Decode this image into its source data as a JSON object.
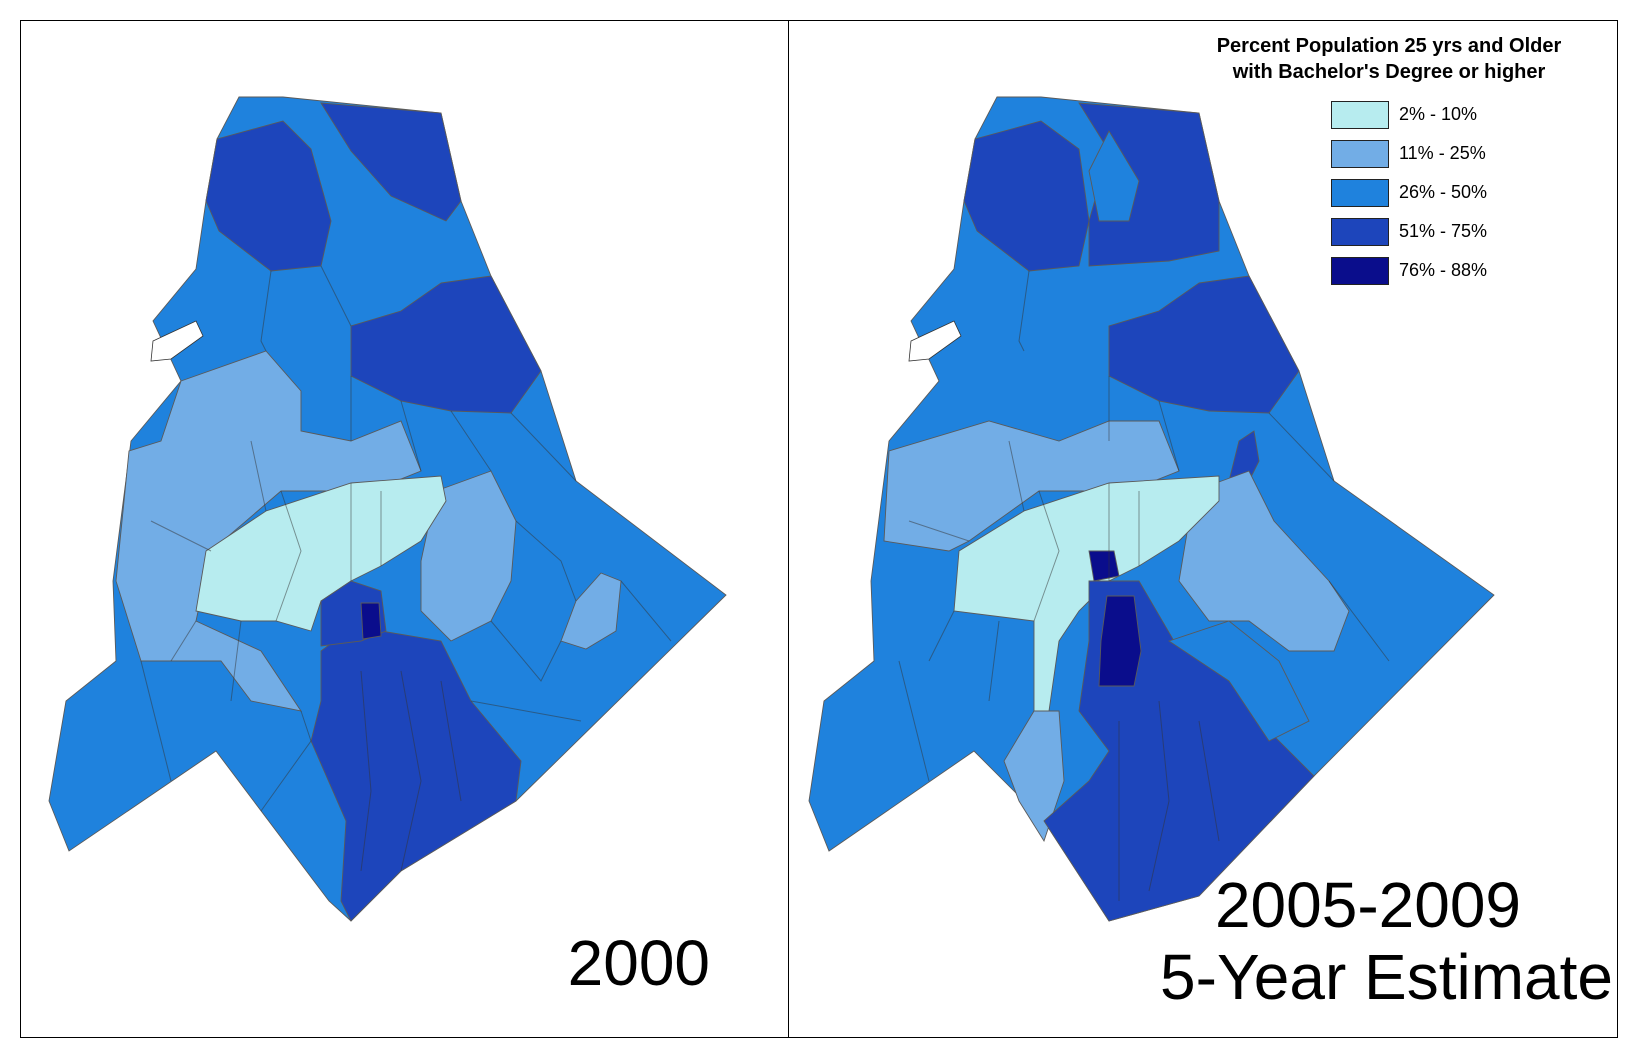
{
  "maps": [
    {
      "id": "left",
      "year_label": "2000"
    },
    {
      "id": "right",
      "year_label_line1": "2005-2009",
      "year_label_line2": "5-Year Estimate"
    }
  ],
  "legend": {
    "title_line1": "Percent Population 25 yrs and Older",
    "title_line2": "with Bachelor's Degree or higher",
    "classes": [
      {
        "label": "2% - 10%",
        "color": "#b7ecef"
      },
      {
        "label": "11% - 25%",
        "color": "#72ade6"
      },
      {
        "label": "26% - 50%",
        "color": "#1f82dd"
      },
      {
        "label": "51% - 75%",
        "color": "#1d45bb"
      },
      {
        "label": "76% - 88%",
        "color": "#0a0d8c"
      }
    ]
  }
}
